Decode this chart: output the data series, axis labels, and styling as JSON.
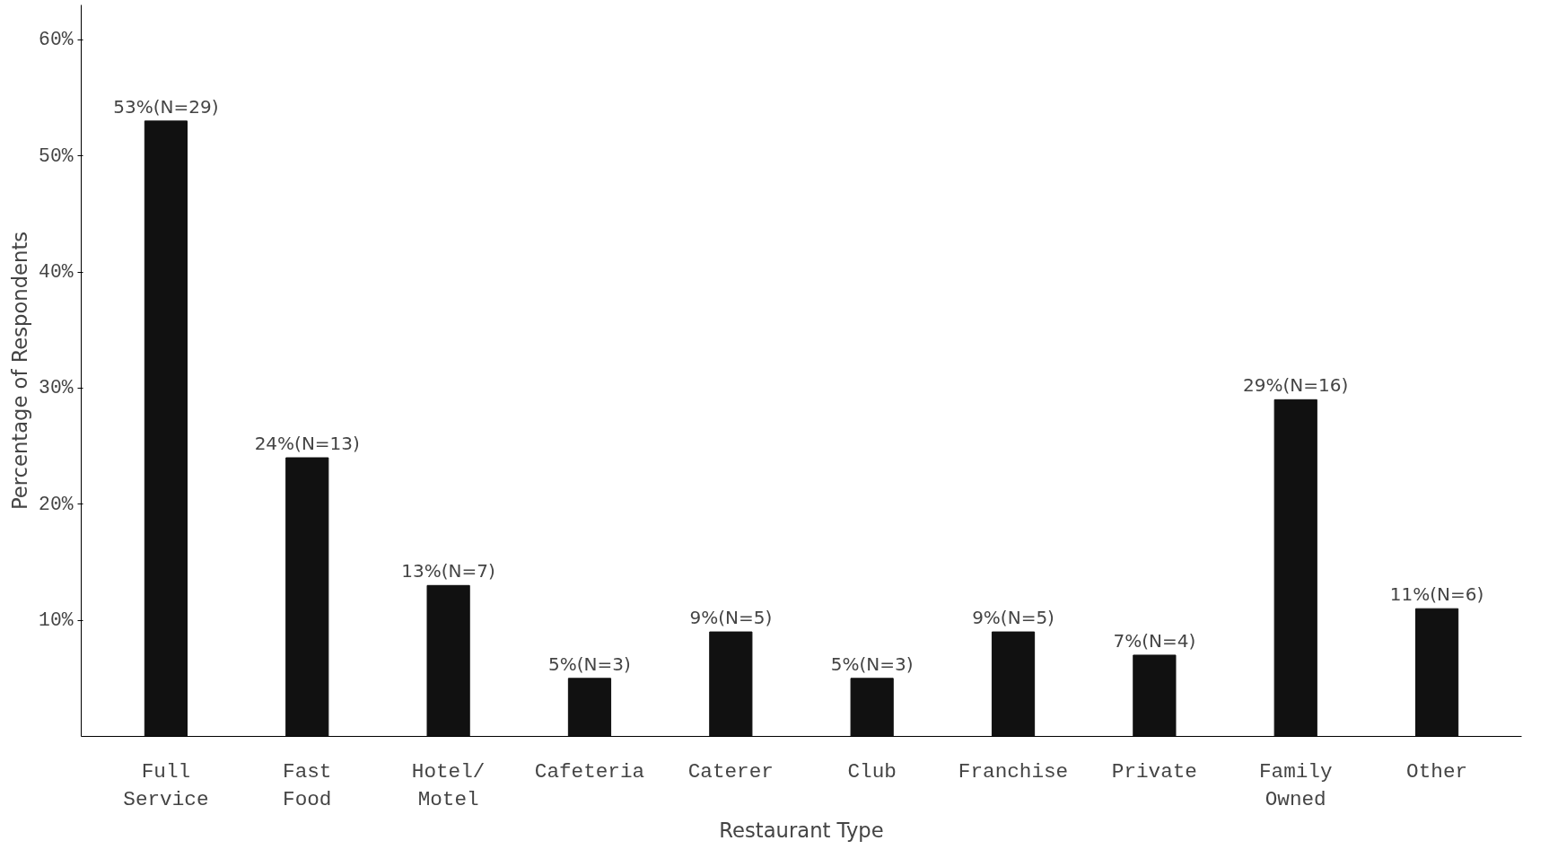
{
  "chart_data": {
    "type": "bar",
    "xlabel": "Restaurant Type",
    "ylabel": "Percentage of Respondents",
    "categories": [
      "Full\nService",
      "Fast\nFood",
      "Hotel/\nMotel",
      "Cafeteria",
      "Caterer",
      "Club",
      "Franchise",
      "Private",
      "Family\nOwned",
      "Other"
    ],
    "values": [
      53,
      24,
      13,
      5,
      9,
      5,
      9,
      7,
      29,
      11
    ],
    "value_labels": [
      "53%(N=29)",
      "24%(N=13)",
      "13%(N=7)",
      "5%(N=3)",
      "9%(N=5)",
      "5%(N=3)",
      "9%(N=5)",
      "7%(N=4)",
      "29%(N=16)",
      "11%(N=6)"
    ],
    "color": "#111111",
    "ylim": [
      0,
      63
    ],
    "yticks": [
      {
        "value": 10,
        "label": "10%"
      },
      {
        "value": 20,
        "label": "20%"
      },
      {
        "value": 30,
        "label": "30%"
      },
      {
        "value": 40,
        "label": "40%"
      },
      {
        "value": 50,
        "label": "50%"
      },
      {
        "value": 60,
        "label": "60%"
      }
    ],
    "grid": false
  }
}
